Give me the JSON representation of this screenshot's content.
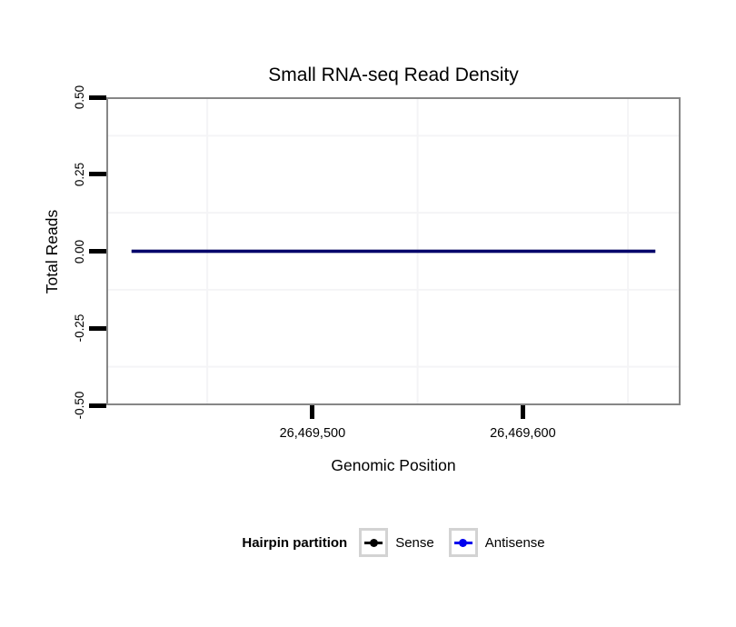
{
  "chart_data": {
    "type": "line",
    "title": "Small RNA-seq Read Density",
    "xlabel": "Genomic Position",
    "ylabel": "Total Reads",
    "xlim": [
      26469402,
      26469675
    ],
    "ylim": [
      -0.5,
      0.5
    ],
    "x_ticks": [
      {
        "value": 26469500,
        "label": "26,469,500"
      },
      {
        "value": 26469600,
        "label": "26,469,600"
      }
    ],
    "y_ticks": [
      {
        "value": 0.5,
        "label": "0.50"
      },
      {
        "value": 0.25,
        "label": "0.25"
      },
      {
        "value": 0.0,
        "label": "0.00"
      },
      {
        "value": -0.25,
        "label": "-0.25"
      },
      {
        "value": -0.5,
        "label": "-0.50"
      }
    ],
    "x_minor_gridlines": [
      26469450,
      26469550,
      26469650
    ],
    "y_minor_gridlines": [
      0.375,
      0.125,
      -0.125,
      -0.375
    ],
    "grid": "minor gridlines only, very faint; major gridlines white/invisible",
    "legend_position": "bottom",
    "series": [
      {
        "name": "Sense",
        "color": "#000000",
        "x": [
          26469414,
          26469663
        ],
        "values": [
          0,
          0
        ]
      },
      {
        "name": "Antisense",
        "color": "#0000ee",
        "x": [
          26469414,
          26469663
        ],
        "values": [
          0,
          0
        ]
      }
    ],
    "legend": {
      "title": "Hairpin partition",
      "entries": [
        "Sense",
        "Antisense"
      ]
    }
  },
  "colors": {
    "panel_border": "#868686",
    "tick": "#000000",
    "minor_grid": "#f4f4f6",
    "legend_key_border": "#d3d3d3",
    "sense": "#000000",
    "antisense": "#0000ee"
  }
}
